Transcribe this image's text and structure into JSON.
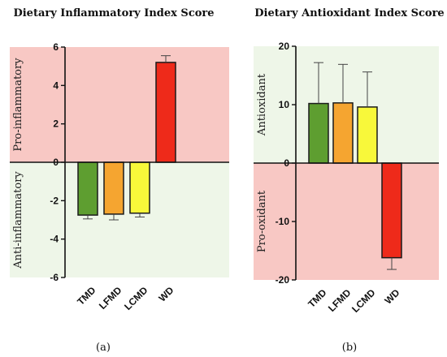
{
  "chart_data": [
    {
      "type": "bar",
      "title": "Dietary Inflammatory Index Score",
      "panel_label": "(a)",
      "categories": [
        "TMD",
        "LFMD",
        "LCMD",
        "WD"
      ],
      "values": [
        -2.75,
        -2.7,
        -2.65,
        5.2
      ],
      "errors": [
        0.2,
        0.3,
        0.2,
        0.35
      ],
      "colors": [
        "#5e9e30",
        "#f5a530",
        "#f8f83a",
        "#ee2a1a"
      ],
      "ylim": [
        -6,
        6
      ],
      "yticks": [
        -6,
        -4,
        -2,
        0,
        2,
        4,
        6
      ],
      "ytick_labels": [
        "-6",
        "-4",
        "-2",
        "0",
        "2",
        "4",
        "6"
      ],
      "upper_region": {
        "label": "Pro-inflammatory",
        "color": "#f8c8c4"
      },
      "lower_region": {
        "label": "Anti-inflammatory",
        "color": "#eef6e8"
      },
      "xlabel": "",
      "ylabel": ""
    },
    {
      "type": "bar",
      "title": "Dietary Antioxidant Index Score",
      "panel_label": "(b)",
      "categories": [
        "TMD",
        "LFMD",
        "LCMD",
        "WD"
      ],
      "values": [
        10.2,
        10.3,
        9.6,
        -16.2
      ],
      "errors": [
        7.0,
        6.6,
        6.0,
        2.0
      ],
      "colors": [
        "#5e9e30",
        "#f5a530",
        "#f8f83a",
        "#ee2a1a"
      ],
      "ylim": [
        -20,
        20
      ],
      "yticks": [
        -20,
        -10,
        0,
        10,
        20
      ],
      "ytick_labels": [
        "-20",
        "-10",
        "0",
        "10",
        "20"
      ],
      "upper_region": {
        "label": "Antioxidant",
        "color": "#eef6e8"
      },
      "lower_region": {
        "label": "Pro-oxidant",
        "color": "#f8c8c4"
      },
      "xlabel": "",
      "ylabel": ""
    }
  ]
}
